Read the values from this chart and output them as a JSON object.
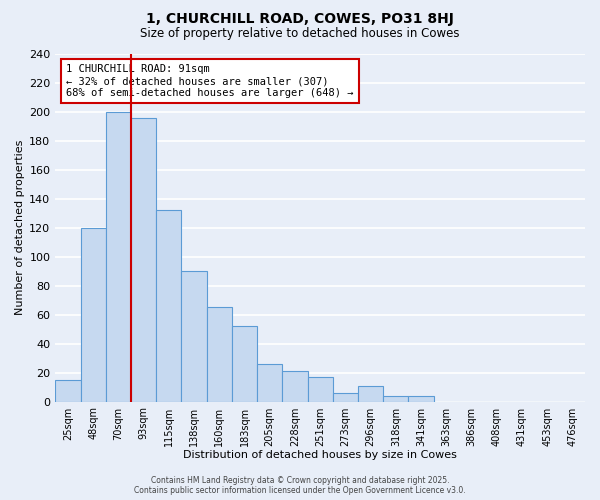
{
  "title": "1, CHURCHILL ROAD, COWES, PO31 8HJ",
  "subtitle": "Size of property relative to detached houses in Cowes",
  "xlabel": "Distribution of detached houses by size in Cowes",
  "ylabel": "Number of detached properties",
  "bin_labels": [
    "25sqm",
    "48sqm",
    "70sqm",
    "93sqm",
    "115sqm",
    "138sqm",
    "160sqm",
    "183sqm",
    "205sqm",
    "228sqm",
    "251sqm",
    "273sqm",
    "296sqm",
    "318sqm",
    "341sqm",
    "363sqm",
    "386sqm",
    "408sqm",
    "431sqm",
    "453sqm",
    "476sqm"
  ],
  "bar_heights": [
    15,
    120,
    200,
    196,
    132,
    90,
    65,
    52,
    26,
    21,
    17,
    6,
    11,
    4,
    4,
    0,
    0,
    0,
    0,
    0,
    0
  ],
  "bar_color": "#c6d9f0",
  "bar_edge_color": "#5b9bd5",
  "vline_x": 3.0,
  "vline_color": "#cc0000",
  "annotation_text": "1 CHURCHILL ROAD: 91sqm\n← 32% of detached houses are smaller (307)\n68% of semi-detached houses are larger (648) →",
  "annotation_box_color": "#ffffff",
  "annotation_box_edge": "#cc0000",
  "ylim": [
    0,
    240
  ],
  "yticks": [
    0,
    20,
    40,
    60,
    80,
    100,
    120,
    140,
    160,
    180,
    200,
    220,
    240
  ],
  "background_color": "#e8eef8",
  "grid_color": "#ffffff",
  "footer_line1": "Contains HM Land Registry data © Crown copyright and database right 2025.",
  "footer_line2": "Contains public sector information licensed under the Open Government Licence v3.0."
}
